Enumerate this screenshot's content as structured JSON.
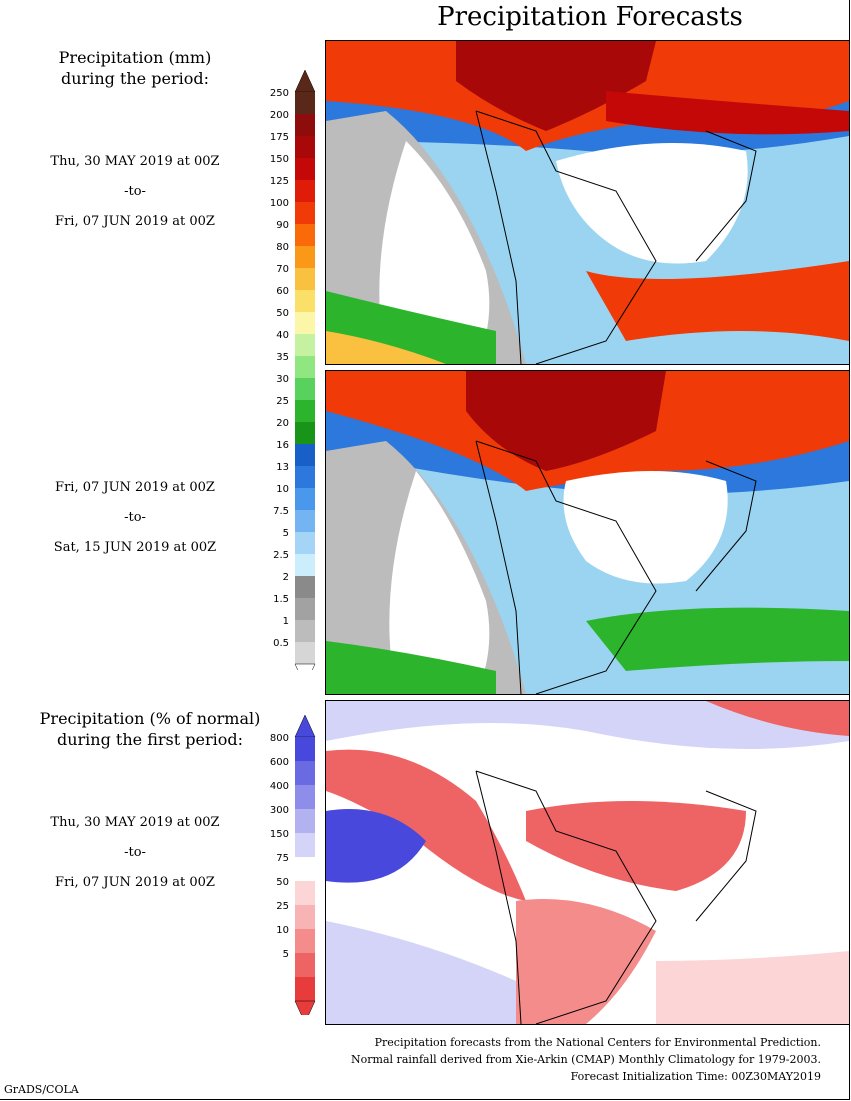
{
  "title": "Precipitation Forecasts",
  "legend_mm": {
    "title_line1": "Precipitation (mm)",
    "title_line2": "during the period:",
    "ticks": [
      "250",
      "200",
      "175",
      "150",
      "125",
      "100",
      "90",
      "80",
      "70",
      "60",
      "50",
      "40",
      "35",
      "30",
      "25",
      "20",
      "16",
      "13",
      "10",
      "7.5",
      "5",
      "2.5",
      "2",
      "1.5",
      "1",
      "0.5"
    ],
    "colors": [
      "#5a2818",
      "#8e0c0c",
      "#a80808",
      "#c40808",
      "#de1c08",
      "#f03a08",
      "#fa6a08",
      "#fa9818",
      "#fac040",
      "#fae068",
      "#fcf6a8",
      "#c4f2a0",
      "#90e680",
      "#58d25c",
      "#2cb42c",
      "#189418",
      "#1860c8",
      "#2c78dc",
      "#4a98ec",
      "#74b4f2",
      "#a4d4f6",
      "#cceefc",
      "#8a8a8a",
      "#a2a2a2",
      "#bcbcbc",
      "#d6d6d6"
    ]
  },
  "period1": {
    "from": "Thu, 30 MAY 2019 at 00Z",
    "to": "-to-",
    "until": "Fri, 07 JUN 2019 at 00Z"
  },
  "period2": {
    "from": "Fri, 07 JUN 2019 at 00Z",
    "to": "-to-",
    "until": "Sat, 15 JUN 2019 at 00Z"
  },
  "legend_pct": {
    "title_line1": "Precipitation (% of normal)",
    "title_line2": "during the first period:",
    "ticks": [
      "800",
      "600",
      "400",
      "300",
      "150",
      "75",
      "50",
      "25",
      "10",
      "5"
    ],
    "colors": [
      "#4848dc",
      "#6a6ae2",
      "#8e8eea",
      "#b2b2f0",
      "#d4d4f8",
      "#ffffff",
      "#fcd6d6",
      "#f8b4b4",
      "#f48c8c",
      "#ee6464",
      "#e83c3c"
    ]
  },
  "period3": {
    "from": "Thu, 30 MAY 2019 at 00Z",
    "to": "-to-",
    "until": "Fri, 07 JUN 2019 at 00Z"
  },
  "footer": {
    "line1": "Precipitation forecasts from the National Centers for Environmental Prediction.",
    "line2": "Normal rainfall derived from Xie-Arkin (CMAP) Monthly Climatology for 1979-2003.",
    "line3": "Forecast Initialization Time: 00Z30MAY2019"
  },
  "credit": "GrADS/COLA"
}
